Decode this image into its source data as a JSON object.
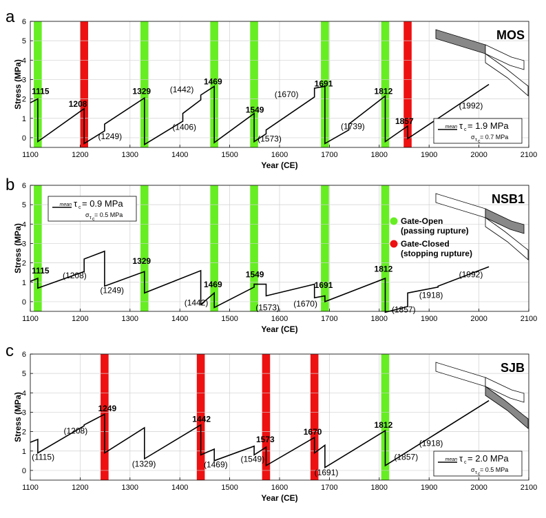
{
  "chart_data": [
    {
      "type": "line",
      "panel_label": "a",
      "name": "MOS",
      "xlabel": "Year (CE)",
      "ylabel": "Stress (MPa)",
      "xlim": [
        1100,
        2100
      ],
      "ylim": [
        -0.5,
        6
      ],
      "xticks": [
        "1100",
        "1200",
        "1300",
        "1400",
        "1500",
        "1600",
        "1700",
        "1800",
        "1900",
        "2000",
        "2100"
      ],
      "yticks": [
        "0",
        "1",
        "2",
        "3",
        "4",
        "5",
        "6"
      ],
      "grid": true,
      "stats_box": {
        "mean_label": "mean",
        "tau": "τ",
        "tau_sub": "c",
        "tau_value": " = 1.9 MPa",
        "sigma": "σ",
        "sigma_sub": "τ",
        "sigma_sub2": "c",
        "sigma_value": " = 0.7 MPa",
        "position": "bottom-right"
      },
      "bars": [
        {
          "year": 1115,
          "width": 16,
          "color": "#66ee22"
        },
        {
          "year": 1208,
          "width": 16,
          "color": "#ee1111"
        },
        {
          "year": 1329,
          "width": 16,
          "color": "#66ee22"
        },
        {
          "year": 1469,
          "width": 16,
          "color": "#66ee22"
        },
        {
          "year": 1549,
          "width": 16,
          "color": "#66ee22"
        },
        {
          "year": 1691,
          "width": 16,
          "color": "#66ee22"
        },
        {
          "year": 1812,
          "width": 16,
          "color": "#66ee22"
        },
        {
          "year": 1857,
          "width": 16,
          "color": "#ee1111"
        }
      ],
      "series": [
        {
          "x": [
            1100,
            1115,
            1115,
            1208,
            1208,
            1249,
            1249,
            1329,
            1329,
            1406,
            1406,
            1442,
            1442,
            1469,
            1469,
            1549,
            1549,
            1573,
            1573,
            1670,
            1670,
            1691,
            1691,
            1739,
            1739,
            1812,
            1812,
            1857,
            1857,
            2020
          ],
          "y": [
            1.8,
            2.0,
            -0.2,
            1.5,
            -0.3,
            0.35,
            0.7,
            2.05,
            -0.35,
            0.85,
            1.25,
            1.95,
            2.2,
            2.65,
            -0.25,
            1.25,
            -0.2,
            0.2,
            0.4,
            2.1,
            2.55,
            2.65,
            -0.3,
            0.4,
            0.7,
            2.15,
            -0.2,
            0.6,
            -0.05,
            2.75
          ]
        }
      ],
      "annotations": [
        {
          "text": "1115",
          "x": 1103,
          "y": 2.25,
          "bold": true
        },
        {
          "text": "1208",
          "x": 1177,
          "y": 1.6,
          "bold": true
        },
        {
          "text": "1329",
          "x": 1305,
          "y": 2.25,
          "bold": true
        },
        {
          "text": "1469",
          "x": 1448,
          "y": 2.75,
          "bold": true
        },
        {
          "text": "1549",
          "x": 1532,
          "y": 1.3,
          "bold": true
        },
        {
          "text": "1691",
          "x": 1670,
          "y": 2.65,
          "bold": true
        },
        {
          "text": "1812",
          "x": 1790,
          "y": 2.25,
          "bold": true
        },
        {
          "text": "1857",
          "x": 1832,
          "y": 0.7,
          "bold": true
        },
        {
          "text": "(1249)",
          "x": 1236,
          "y": -0.08,
          "bold": false
        },
        {
          "text": "(1406)",
          "x": 1385,
          "y": 0.4,
          "bold": false
        },
        {
          "text": "(1442)",
          "x": 1380,
          "y": 2.35,
          "bold": false
        },
        {
          "text": "(1573)",
          "x": 1556,
          "y": -0.2,
          "bold": false
        },
        {
          "text": "(1670)",
          "x": 1590,
          "y": 2.1,
          "bold": false
        },
        {
          "text": "(1739)",
          "x": 1723,
          "y": 0.45,
          "bold": false
        },
        {
          "text": "(1992)",
          "x": 1960,
          "y": 1.5,
          "bold": false
        }
      ],
      "fault_highlight": "left"
    },
    {
      "type": "line",
      "panel_label": "b",
      "name": "NSB1",
      "xlabel": "Year (CE)",
      "ylabel": "Stress (MPa)",
      "xlim": [
        1100,
        2100
      ],
      "ylim": [
        -0.5,
        6
      ],
      "xticks": [
        "1100",
        "1200",
        "1300",
        "1400",
        "1500",
        "1600",
        "1700",
        "1800",
        "1900",
        "2000",
        "2100"
      ],
      "yticks": [
        "0",
        "1",
        "2",
        "3",
        "4",
        "5",
        "6"
      ],
      "grid": true,
      "stats_box": {
        "mean_label": "mean",
        "tau": "τ",
        "tau_sub": "c",
        "tau_value": " = 0.9 MPa",
        "sigma": "σ",
        "sigma_sub": "τ",
        "sigma_sub2": "c",
        "sigma_value": " = 0.5 MPa",
        "position": "top-left"
      },
      "legend": [
        {
          "color": "#66ee22",
          "line1": "Gate-Open",
          "line2": "(passing rupture)"
        },
        {
          "color": "#ee1111",
          "line1": "Gate-Closed",
          "line2": "(stopping rupture)"
        }
      ],
      "bars": [
        {
          "year": 1115,
          "width": 16,
          "color": "#66ee22"
        },
        {
          "year": 1329,
          "width": 16,
          "color": "#66ee22"
        },
        {
          "year": 1469,
          "width": 16,
          "color": "#66ee22"
        },
        {
          "year": 1549,
          "width": 16,
          "color": "#66ee22"
        },
        {
          "year": 1691,
          "width": 16,
          "color": "#66ee22"
        },
        {
          "year": 1812,
          "width": 16,
          "color": "#66ee22"
        }
      ],
      "series": [
        {
          "x": [
            1100,
            1115,
            1115,
            1208,
            1208,
            1249,
            1249,
            1329,
            1329,
            1442,
            1442,
            1469,
            1469,
            1549,
            1549,
            1573,
            1573,
            1670,
            1670,
            1691,
            1691,
            1812,
            1812,
            1857,
            1857,
            1918,
            1918,
            2020
          ],
          "y": [
            1.05,
            1.2,
            0.7,
            1.55,
            2.2,
            2.6,
            0.8,
            1.55,
            0.45,
            1.6,
            -0.15,
            0.45,
            -0.3,
            0.75,
            0.9,
            0.9,
            0.3,
            0.9,
            0.2,
            0.3,
            0.0,
            1.2,
            -0.55,
            -0.25,
            0.45,
            0.75,
            0.8,
            1.8
          ]
        }
      ],
      "annotations": [
        {
          "text": "1115",
          "x": 1103,
          "y": 1.45,
          "bold": true
        },
        {
          "text": "1329",
          "x": 1305,
          "y": 1.95,
          "bold": true
        },
        {
          "text": "1469",
          "x": 1448,
          "y": 0.75,
          "bold": true
        },
        {
          "text": "1549",
          "x": 1532,
          "y": 1.25,
          "bold": true
        },
        {
          "text": "1691",
          "x": 1670,
          "y": 0.7,
          "bold": true
        },
        {
          "text": "1812",
          "x": 1790,
          "y": 1.55,
          "bold": true
        },
        {
          "text": "(1208)",
          "x": 1165,
          "y": 1.2,
          "bold": false
        },
        {
          "text": "(1249)",
          "x": 1240,
          "y": 0.45,
          "bold": false
        },
        {
          "text": "(1442)",
          "x": 1409,
          "y": -0.2,
          "bold": false
        },
        {
          "text": "(1573)",
          "x": 1552,
          "y": -0.45,
          "bold": false
        },
        {
          "text": "(1670)",
          "x": 1628,
          "y": -0.25,
          "bold": false
        },
        {
          "text": "(1857)",
          "x": 1825,
          "y": -0.55,
          "bold": false
        },
        {
          "text": "(1918)",
          "x": 1880,
          "y": 0.2,
          "bold": false
        },
        {
          "text": "(1992)",
          "x": 1960,
          "y": 1.25,
          "bold": false
        }
      ],
      "fault_highlight": "middle"
    },
    {
      "type": "line",
      "panel_label": "c",
      "name": "SJB",
      "xlabel": "Year (CE)",
      "ylabel": "Stress (MPa)",
      "xlim": [
        1100,
        2100
      ],
      "ylim": [
        -0.5,
        6
      ],
      "xticks": [
        "1100",
        "1200",
        "1300",
        "1400",
        "1500",
        "1600",
        "1700",
        "1800",
        "1900",
        "2000",
        "2100"
      ],
      "yticks": [
        "0",
        "1",
        "2",
        "3",
        "4",
        "5",
        "6"
      ],
      "grid": true,
      "stats_box": {
        "mean_label": "mean",
        "tau": "τ",
        "tau_sub": "c",
        "tau_value": " = 2.0 MPa",
        "sigma": "σ",
        "sigma_sub": "τ",
        "sigma_sub2": "c",
        "sigma_value": " = 0.5 MPa",
        "position": "bottom-right"
      },
      "bars": [
        {
          "year": 1249,
          "width": 16,
          "color": "#ee1111"
        },
        {
          "year": 1442,
          "width": 16,
          "color": "#ee1111"
        },
        {
          "year": 1573,
          "width": 16,
          "color": "#ee1111"
        },
        {
          "year": 1670,
          "width": 16,
          "color": "#ee1111"
        },
        {
          "year": 1812,
          "width": 16,
          "color": "#66ee22"
        }
      ],
      "series": [
        {
          "x": [
            1100,
            1115,
            1115,
            1208,
            1208,
            1249,
            1249,
            1329,
            1329,
            1442,
            1442,
            1469,
            1469,
            1549,
            1549,
            1573,
            1573,
            1670,
            1670,
            1691,
            1691,
            1812,
            1812,
            2020
          ],
          "y": [
            1.45,
            1.6,
            0.9,
            2.3,
            2.35,
            2.9,
            0.9,
            2.2,
            0.6,
            2.35,
            0.8,
            1.1,
            0.5,
            1.25,
            0.8,
            1.2,
            0.25,
            1.7,
            0.9,
            1.3,
            0.15,
            2.05,
            0.25,
            3.6
          ]
        }
      ],
      "annotations": [
        {
          "text": "1249",
          "x": 1236,
          "y": 3.05,
          "bold": true
        },
        {
          "text": "1442",
          "x": 1425,
          "y": 2.5,
          "bold": true
        },
        {
          "text": "1573",
          "x": 1553,
          "y": 1.45,
          "bold": true
        },
        {
          "text": "1670",
          "x": 1648,
          "y": 1.85,
          "bold": true
        },
        {
          "text": "1812",
          "x": 1790,
          "y": 2.2,
          "bold": true
        },
        {
          "text": "(1115)",
          "x": 1103,
          "y": 0.55,
          "bold": false
        },
        {
          "text": "(1208)",
          "x": 1167,
          "y": 1.9,
          "bold": false
        },
        {
          "text": "(1329)",
          "x": 1304,
          "y": 0.2,
          "bold": false
        },
        {
          "text": "(1469)",
          "x": 1448,
          "y": 0.15,
          "bold": false
        },
        {
          "text": "(1549)",
          "x": 1522,
          "y": 0.45,
          "bold": false
        },
        {
          "text": "(1691)",
          "x": 1670,
          "y": -0.25,
          "bold": false
        },
        {
          "text": "(1857)",
          "x": 1830,
          "y": 0.55,
          "bold": false
        },
        {
          "text": "(1918)",
          "x": 1880,
          "y": 1.25,
          "bold": false
        }
      ],
      "fault_highlight": "right"
    }
  ]
}
